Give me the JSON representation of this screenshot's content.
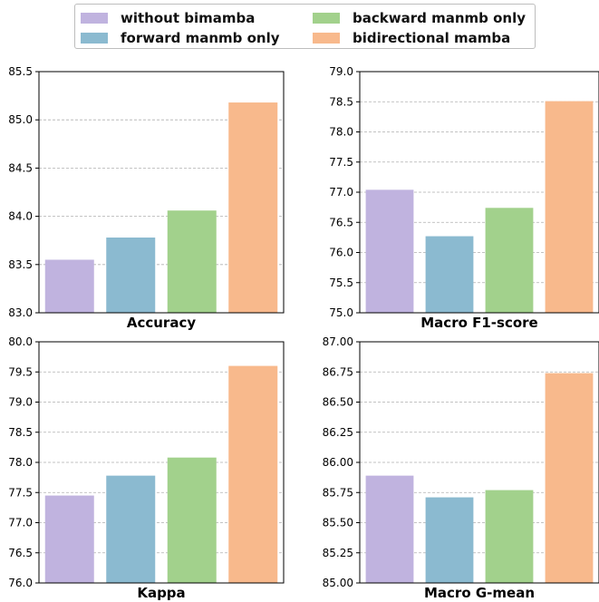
{
  "legend": {
    "items": [
      {
        "label": "without bimamba",
        "color": "#c0b3df"
      },
      {
        "label": "forward manmb only",
        "color": "#8bbad0"
      },
      {
        "label": "backward manmb only",
        "color": "#a2d18c"
      },
      {
        "label": "bidirectional mamba",
        "color": "#f8b98c"
      }
    ]
  },
  "chart_data": [
    {
      "type": "bar",
      "title": "Accuracy",
      "categories": [
        "without bimamba",
        "forward manmb only",
        "backward manmb only",
        "bidirectional mamba"
      ],
      "values": [
        83.55,
        83.78,
        84.06,
        85.18
      ],
      "ylim": [
        83.0,
        85.5
      ],
      "yticks": [
        "83.0",
        "83.5",
        "84.0",
        "84.5",
        "85.0",
        "85.5"
      ],
      "grid": true
    },
    {
      "type": "bar",
      "title": "Macro F1-score",
      "categories": [
        "without bimamba",
        "forward manmb only",
        "backward manmb only",
        "bidirectional mamba"
      ],
      "values": [
        77.04,
        76.27,
        76.74,
        78.51
      ],
      "ylim": [
        75.0,
        79.0
      ],
      "yticks": [
        "75.0",
        "75.5",
        "76.0",
        "76.5",
        "77.0",
        "77.5",
        "78.0",
        "78.5",
        "79.0"
      ],
      "grid": true
    },
    {
      "type": "bar",
      "title": "Kappa",
      "categories": [
        "without bimamba",
        "forward manmb only",
        "backward manmb only",
        "bidirectional mamba"
      ],
      "values": [
        77.45,
        77.78,
        78.08,
        79.6
      ],
      "ylim": [
        76.0,
        80.0
      ],
      "yticks": [
        "76.0",
        "76.5",
        "77.0",
        "77.5",
        "78.0",
        "78.5",
        "79.0",
        "79.5",
        "80.0"
      ],
      "grid": true
    },
    {
      "type": "bar",
      "title": "Macro G-mean",
      "categories": [
        "without bimamba",
        "forward manmb only",
        "backward manmb only",
        "bidirectional mamba"
      ],
      "values": [
        85.89,
        85.71,
        85.77,
        86.74
      ],
      "ylim": [
        85.0,
        87.0
      ],
      "yticks": [
        "85.00",
        "85.25",
        "85.50",
        "85.75",
        "86.00",
        "86.25",
        "86.50",
        "86.75",
        "87.00"
      ],
      "grid": true
    }
  ]
}
